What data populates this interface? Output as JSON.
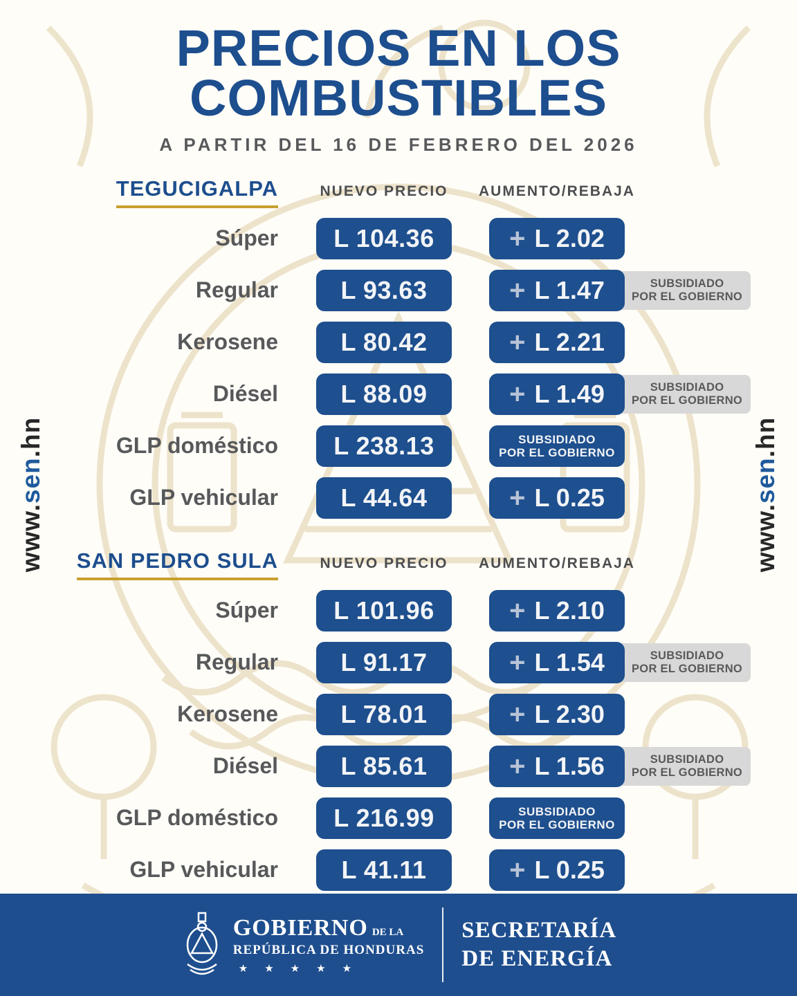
{
  "title": {
    "line1": "PRECIOS EN LOS",
    "line2": "COMBUSTIBLES",
    "subtitle": "A PARTIR DEL 16 DE FEBRERO DEL 2026"
  },
  "columns": {
    "new_price": "NUEVO PRECIO",
    "change": "AUMENTO/REBAJA"
  },
  "subsidy_label": {
    "line1": "SUBSIDIADO",
    "line2": "POR EL GOBIERNO"
  },
  "sections": [
    {
      "city": "TEGUCIGALPA",
      "rows": [
        {
          "fuel": "Súper",
          "price": "L 104.36",
          "sign": "+",
          "change": "L 2.02",
          "subsidized": false,
          "subsidy_pill": false
        },
        {
          "fuel": "Regular",
          "price": "L 93.63",
          "sign": "+",
          "change": "L 1.47",
          "subsidized": true,
          "subsidy_pill": false
        },
        {
          "fuel": "Kerosene",
          "price": "L 80.42",
          "sign": "+",
          "change": "L 2.21",
          "subsidized": false,
          "subsidy_pill": false
        },
        {
          "fuel": "Diésel",
          "price": "L 88.09",
          "sign": "+",
          "change": "L 1.49",
          "subsidized": true,
          "subsidy_pill": false
        },
        {
          "fuel": "GLP doméstico",
          "price": "L 238.13",
          "sign": "",
          "change": "",
          "subsidized": false,
          "subsidy_pill": true
        },
        {
          "fuel": "GLP vehicular",
          "price": "L 44.64",
          "sign": "+",
          "change": "L 0.25",
          "subsidized": false,
          "subsidy_pill": false
        }
      ]
    },
    {
      "city": "SAN PEDRO SULA",
      "rows": [
        {
          "fuel": "Súper",
          "price": "L 101.96",
          "sign": "+",
          "change": "L 2.10",
          "subsidized": false,
          "subsidy_pill": false
        },
        {
          "fuel": "Regular",
          "price": "L 91.17",
          "sign": "+",
          "change": "L 1.54",
          "subsidized": true,
          "subsidy_pill": false
        },
        {
          "fuel": "Kerosene",
          "price": "L 78.01",
          "sign": "+",
          "change": "L 2.30",
          "subsidized": false,
          "subsidy_pill": false
        },
        {
          "fuel": "Diésel",
          "price": "L 85.61",
          "sign": "+",
          "change": "L 1.56",
          "subsidized": true,
          "subsidy_pill": false
        },
        {
          "fuel": "GLP doméstico",
          "price": "L 216.99",
          "sign": "",
          "change": "",
          "subsidized": false,
          "subsidy_pill": true
        },
        {
          "fuel": "GLP vehicular",
          "price": "L 41.11",
          "sign": "+",
          "change": "L 0.25",
          "subsidized": false,
          "subsidy_pill": false
        }
      ]
    }
  ],
  "side_url": {
    "prefix": "www.",
    "highlight": "sen",
    "suffix": ".hn"
  },
  "footer": {
    "gobierno_big": "GOBIERNO",
    "gobierno_small": "DE LA",
    "republica": "REPÚBLICA DE HONDURAS",
    "stars": "★★★★★",
    "secretaria_line1": "SECRETARÍA",
    "secretaria_line2": "DE ENERGÍA"
  },
  "colors": {
    "accent_blue": "#1e4f8e",
    "title_blue": "#1d4e8e",
    "gold_underline": "#c7a02e",
    "label_gray": "#57585a",
    "badge_gray": "#d8d8d8",
    "plus_gray_blue": "#b7c3d6",
    "watermark_beige": "#e9ddc1"
  }
}
